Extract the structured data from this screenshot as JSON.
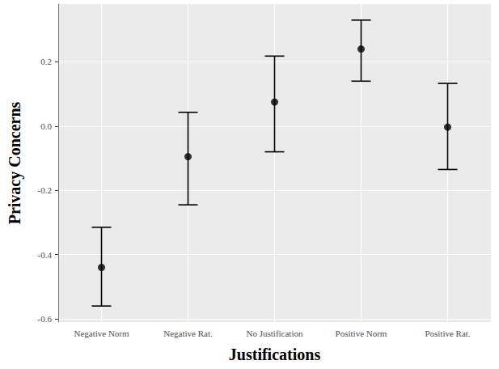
{
  "chart_data": {
    "type": "scatter",
    "x_label": "Justifications",
    "y_label": "Privacy Concerns",
    "categories": [
      "Negative Norm",
      "Negative Rat.",
      "No Justification",
      "Positive Norm",
      "Positive Rat."
    ],
    "values": [
      -0.44,
      -0.095,
      0.075,
      0.24,
      -0.003
    ],
    "error_lower": [
      -0.56,
      -0.245,
      -0.08,
      0.14,
      -0.135
    ],
    "error_upper": [
      -0.315,
      0.043,
      0.218,
      0.33,
      0.133
    ],
    "color": "#000000",
    "ylim": [
      -0.61,
      0.38
    ],
    "yticks": [
      -0.6,
      -0.4,
      -0.2,
      {
        "value": 0,
        "label": "0.0"
      },
      0.2
    ],
    "grid": true
  }
}
